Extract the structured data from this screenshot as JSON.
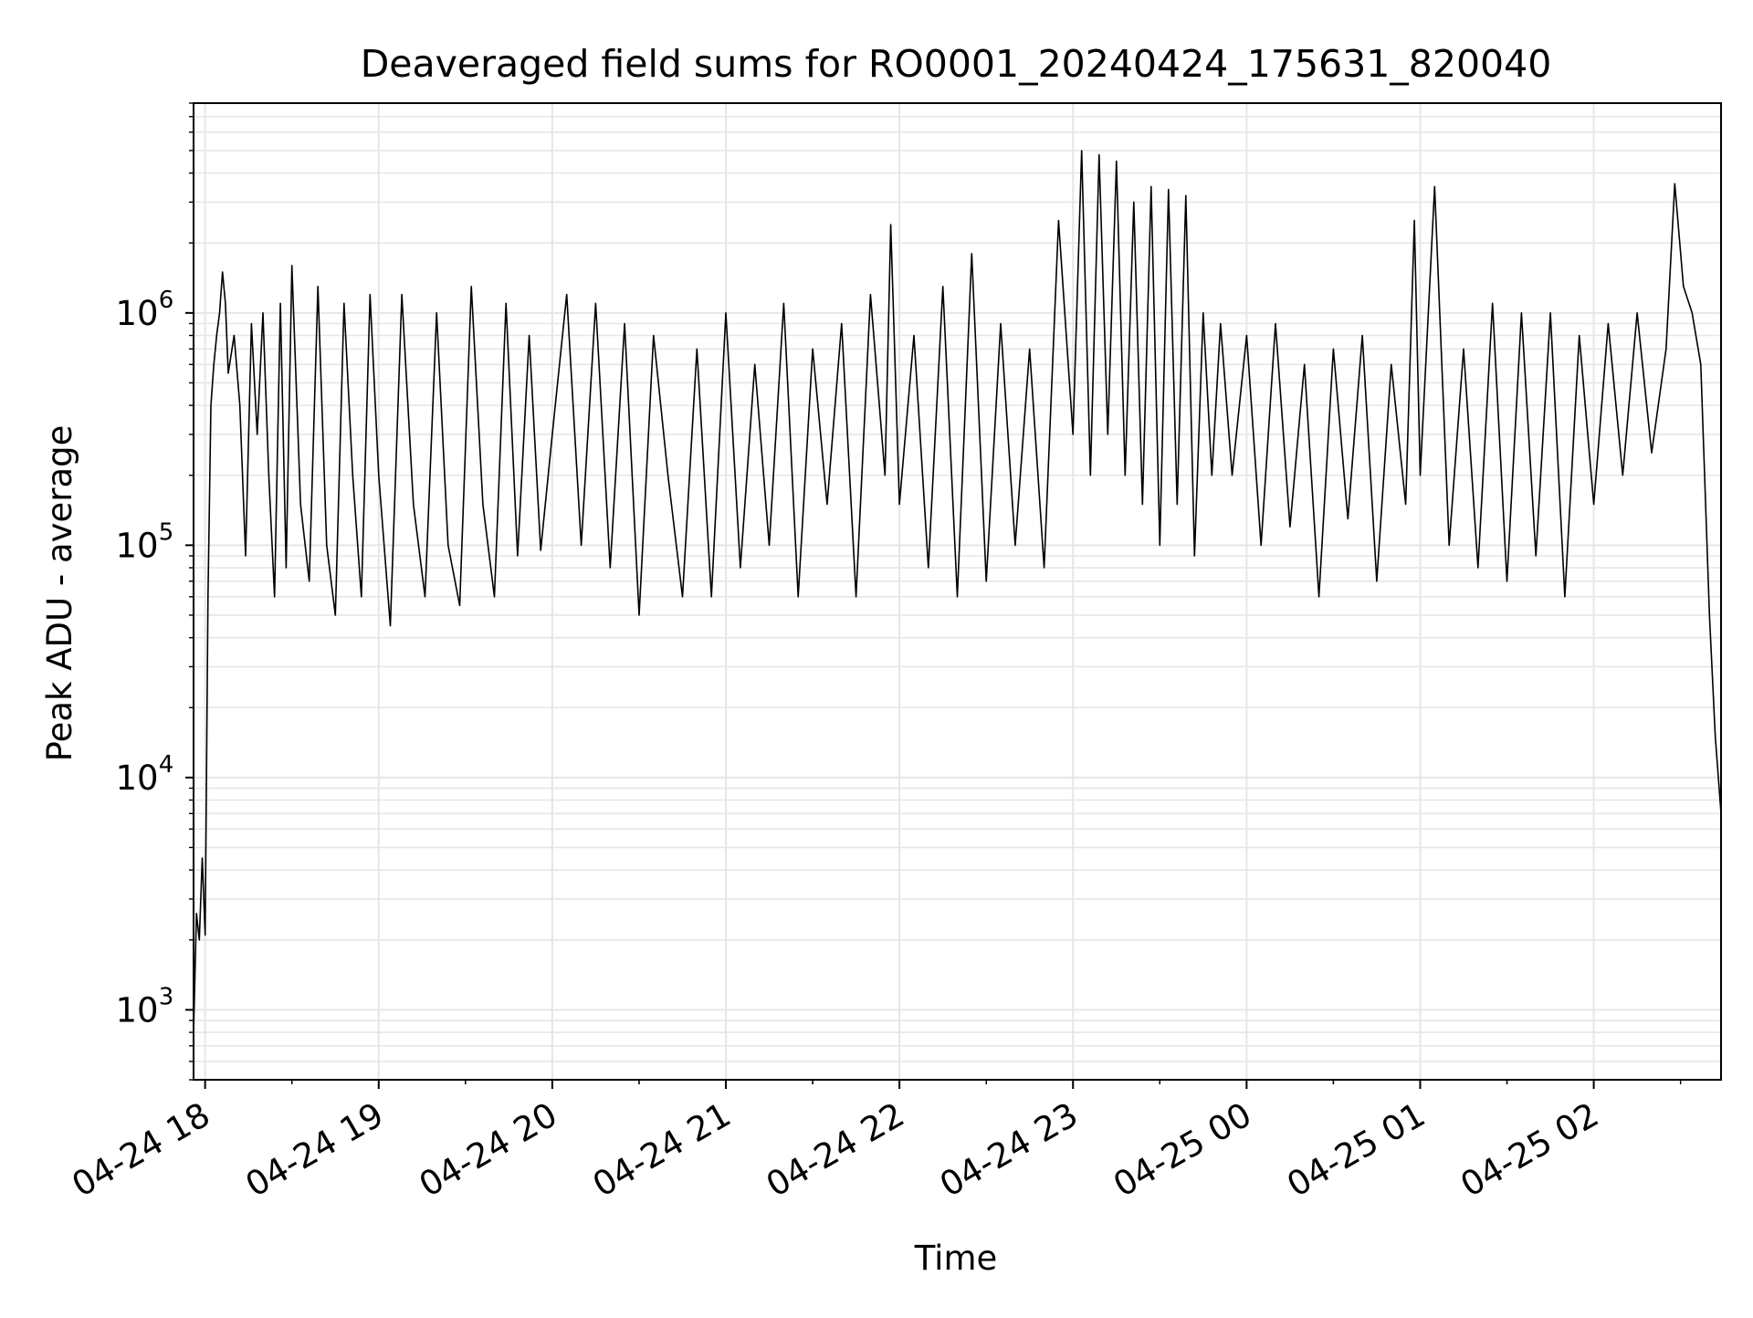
{
  "chart_data": {
    "type": "line",
    "title": "Deaveraged field sums for RO0001_20240424_175631_820040",
    "xlabel": "Time",
    "ylabel": "Peak ADU - average",
    "x_tick_labels": [
      "04-24 18",
      "04-24 19",
      "04-24 20",
      "04-24 21",
      "04-24 22",
      "04-24 23",
      "04-25 00",
      "04-25 01",
      "04-25 02"
    ],
    "x_ticks": [
      "2024-04-24 18:00",
      "2024-04-24 19:00",
      "2024-04-24 20:00",
      "2024-04-24 21:00",
      "2024-04-24 22:00",
      "2024-04-24 23:00",
      "2024-04-25 00:00",
      "2024-04-25 01:00",
      "2024-04-25 02:00"
    ],
    "xlim": [
      "2024-04-24 17:56",
      "2024-04-25 02:44"
    ],
    "y_scale": "log",
    "y_ticks": [
      1000,
      10000,
      100000,
      1000000
    ],
    "ylim": [
      500,
      8000000
    ],
    "grid": true,
    "line_color": "#000000",
    "series": [
      {
        "x": [
          "2024-04-24 17:56",
          "2024-04-24 17:57",
          "2024-04-24 17:58",
          "2024-04-24 17:59",
          "2024-04-24 18:00",
          "2024-04-24 18:01",
          "2024-04-24 18:02",
          "2024-04-24 18:03",
          "2024-04-24 18:04",
          "2024-04-24 18:05",
          "2024-04-24 18:06",
          "2024-04-24 18:07",
          "2024-04-24 18:08",
          "2024-04-24 18:10",
          "2024-04-24 18:12",
          "2024-04-24 18:14",
          "2024-04-24 18:16",
          "2024-04-24 18:18",
          "2024-04-24 18:20",
          "2024-04-24 18:22",
          "2024-04-24 18:24",
          "2024-04-24 18:26",
          "2024-04-24 18:28",
          "2024-04-24 18:30",
          "2024-04-24 18:33",
          "2024-04-24 18:36",
          "2024-04-24 18:39",
          "2024-04-24 18:42",
          "2024-04-24 18:45",
          "2024-04-24 18:48",
          "2024-04-24 18:51",
          "2024-04-24 18:54",
          "2024-04-24 18:57",
          "2024-04-24 19:00",
          "2024-04-24 19:04",
          "2024-04-24 19:08",
          "2024-04-24 19:12",
          "2024-04-24 19:16",
          "2024-04-24 19:20",
          "2024-04-24 19:24",
          "2024-04-24 19:28",
          "2024-04-24 19:32",
          "2024-04-24 19:36",
          "2024-04-24 19:40",
          "2024-04-24 19:44",
          "2024-04-24 19:48",
          "2024-04-24 19:52",
          "2024-04-24 19:56",
          "2024-04-24 20:00",
          "2024-04-24 20:05",
          "2024-04-24 20:10",
          "2024-04-24 20:15",
          "2024-04-24 20:20",
          "2024-04-24 20:25",
          "2024-04-24 20:30",
          "2024-04-24 20:35",
          "2024-04-24 20:40",
          "2024-04-24 20:45",
          "2024-04-24 20:50",
          "2024-04-24 20:55",
          "2024-04-24 21:00",
          "2024-04-24 21:05",
          "2024-04-24 21:10",
          "2024-04-24 21:15",
          "2024-04-24 21:20",
          "2024-04-24 21:25",
          "2024-04-24 21:30",
          "2024-04-24 21:35",
          "2024-04-24 21:40",
          "2024-04-24 21:45",
          "2024-04-24 21:50",
          "2024-04-24 21:55",
          "2024-04-24 21:57",
          "2024-04-24 22:00",
          "2024-04-24 22:05",
          "2024-04-24 22:10",
          "2024-04-24 22:15",
          "2024-04-24 22:20",
          "2024-04-24 22:25",
          "2024-04-24 22:30",
          "2024-04-24 22:35",
          "2024-04-24 22:40",
          "2024-04-24 22:45",
          "2024-04-24 22:50",
          "2024-04-24 22:55",
          "2024-04-24 23:00",
          "2024-04-24 23:03",
          "2024-04-24 23:06",
          "2024-04-24 23:09",
          "2024-04-24 23:12",
          "2024-04-24 23:15",
          "2024-04-24 23:18",
          "2024-04-24 23:21",
          "2024-04-24 23:24",
          "2024-04-24 23:27",
          "2024-04-24 23:30",
          "2024-04-24 23:33",
          "2024-04-24 23:36",
          "2024-04-24 23:39",
          "2024-04-24 23:42",
          "2024-04-24 23:45",
          "2024-04-24 23:48",
          "2024-04-24 23:51",
          "2024-04-24 23:55",
          "2024-04-25 00:00",
          "2024-04-25 00:05",
          "2024-04-25 00:10",
          "2024-04-25 00:15",
          "2024-04-25 00:20",
          "2024-04-25 00:25",
          "2024-04-25 00:30",
          "2024-04-25 00:35",
          "2024-04-25 00:40",
          "2024-04-25 00:45",
          "2024-04-25 00:50",
          "2024-04-25 00:55",
          "2024-04-25 00:58",
          "2024-04-25 01:00",
          "2024-04-25 01:05",
          "2024-04-25 01:10",
          "2024-04-25 01:15",
          "2024-04-25 01:20",
          "2024-04-25 01:25",
          "2024-04-25 01:30",
          "2024-04-25 01:35",
          "2024-04-25 01:40",
          "2024-04-25 01:45",
          "2024-04-25 01:50",
          "2024-04-25 01:55",
          "2024-04-25 02:00",
          "2024-04-25 02:05",
          "2024-04-25 02:10",
          "2024-04-25 02:15",
          "2024-04-25 02:20",
          "2024-04-25 02:25",
          "2024-04-25 02:28",
          "2024-04-25 02:31",
          "2024-04-25 02:34",
          "2024-04-25 02:37",
          "2024-04-25 02:40",
          "2024-04-25 02:42",
          "2024-04-25 02:44"
        ],
        "y": [
          800,
          2600,
          2000,
          4500,
          2100,
          60000,
          400000,
          600000,
          800000,
          1000000,
          1500000,
          1100000,
          550000,
          800000,
          400000,
          90000,
          900000,
          300000,
          1000000,
          200000,
          60000,
          1100000,
          80000,
          1600000,
          150000,
          70000,
          1300000,
          100000,
          50000,
          1100000,
          200000,
          60000,
          1200000,
          200000,
          45000,
          1200000,
          150000,
          60000,
          1000000,
          100000,
          55000,
          1300000,
          150000,
          60000,
          1100000,
          90000,
          800000,
          95000,
          300000,
          1200000,
          100000,
          1100000,
          80000,
          900000,
          50000,
          800000,
          200000,
          60000,
          700000,
          60000,
          1000000,
          80000,
          600000,
          100000,
          1100000,
          60000,
          700000,
          150000,
          900000,
          60000,
          1200000,
          200000,
          2400000,
          150000,
          800000,
          80000,
          1300000,
          60000,
          1800000,
          70000,
          900000,
          100000,
          700000,
          80000,
          2500000,
          300000,
          5000000,
          200000,
          4800000,
          300000,
          4500000,
          200000,
          3000000,
          150000,
          3500000,
          100000,
          3400000,
          150000,
          3200000,
          90000,
          1000000,
          200000,
          900000,
          200000,
          800000,
          100000,
          900000,
          120000,
          600000,
          60000,
          700000,
          130000,
          800000,
          70000,
          600000,
          150000,
          2500000,
          200000,
          3500000,
          100000,
          700000,
          80000,
          1100000,
          70000,
          1000000,
          90000,
          1000000,
          60000,
          800000,
          150000,
          900000,
          200000,
          1000000,
          250000,
          700000,
          3600000,
          1300000,
          1000000,
          600000,
          50000,
          15000,
          7000
        ]
      }
    ]
  }
}
